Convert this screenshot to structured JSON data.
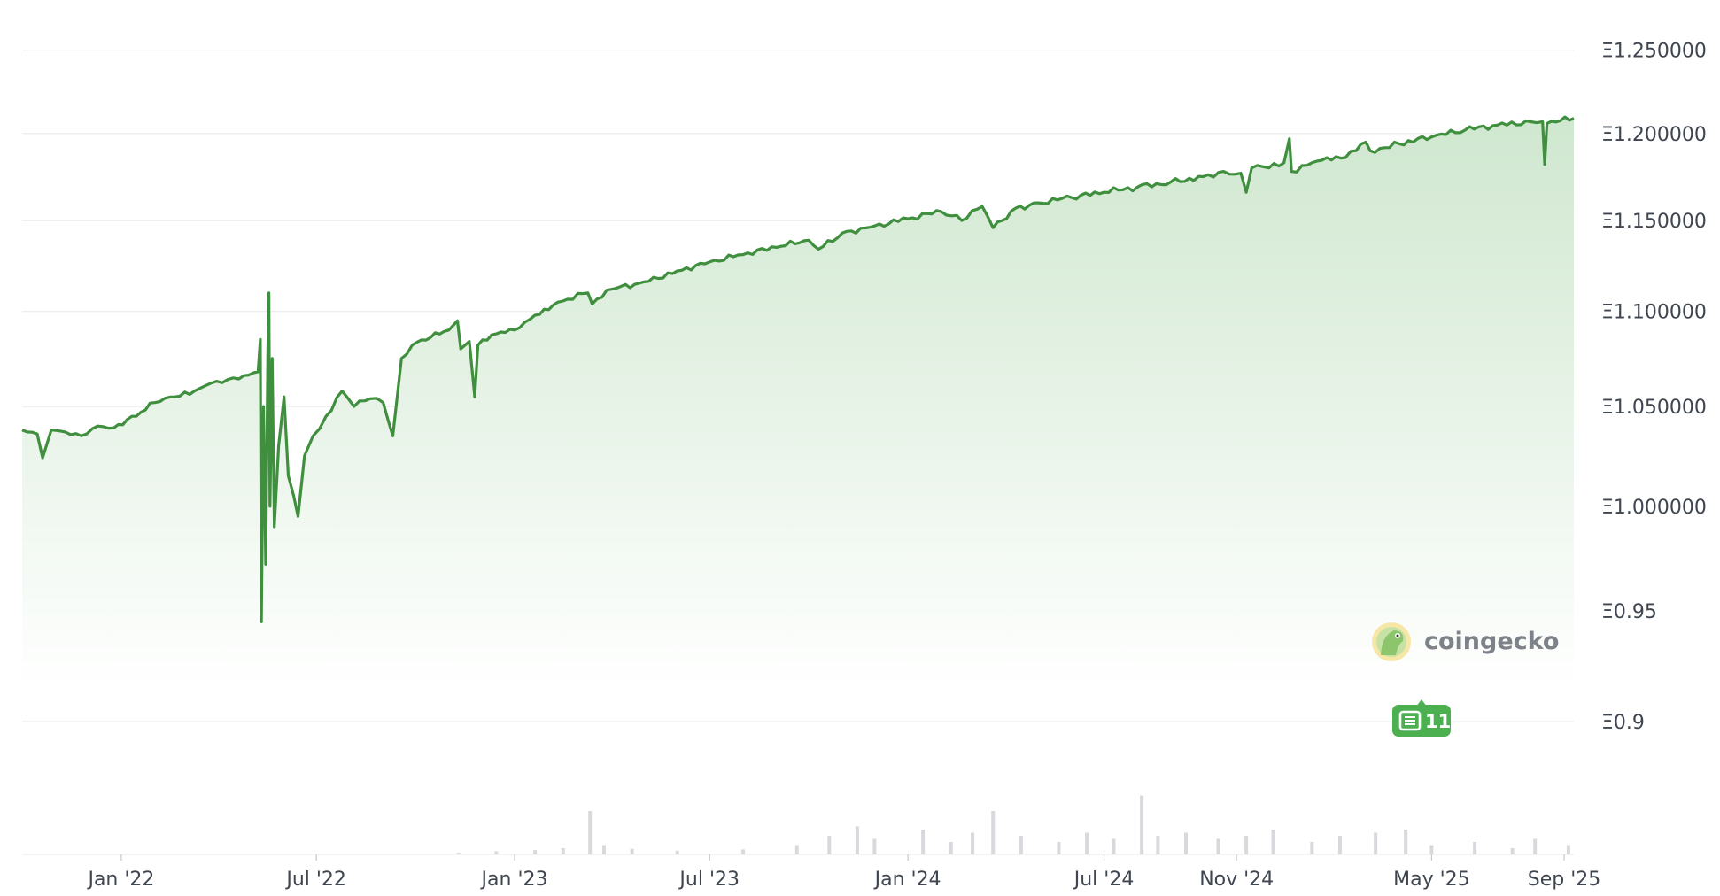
{
  "brand": {
    "name": "coingecko",
    "icon": "gecko-icon"
  },
  "news_badge": {
    "count": "11",
    "icon": "newspaper-icon",
    "color": "#4caf50"
  },
  "colors": {
    "line": "#3f8f3f",
    "area_top": "#cfe7cf",
    "volume": "#d9d9dd"
  },
  "chart_data": {
    "type": "area",
    "y_scale": "log",
    "grid": true,
    "ylim": [
      0.875,
      1.27
    ],
    "xlim": [
      "2021-10-01",
      "2025-09-10"
    ],
    "y_ticks": [
      {
        "value": 1.25,
        "label": "Ξ1.250000"
      },
      {
        "value": 1.2,
        "label": "Ξ1.200000"
      },
      {
        "value": 1.15,
        "label": "Ξ1.150000"
      },
      {
        "value": 1.1,
        "label": "Ξ1.100000"
      },
      {
        "value": 1.05,
        "label": "Ξ1.050000"
      },
      {
        "value": 1.0,
        "label": "Ξ1.000000"
      },
      {
        "value": 0.95,
        "label": "Ξ0.95"
      },
      {
        "value": 0.9,
        "label": "Ξ0.9"
      }
    ],
    "x_ticks": [
      {
        "date": "2022-01-01",
        "label": "Jan '22"
      },
      {
        "date": "2022-07-01",
        "label": "Jul '22"
      },
      {
        "date": "2023-01-01",
        "label": "Jan '23"
      },
      {
        "date": "2023-07-01",
        "label": "Jul '23"
      },
      {
        "date": "2024-01-01",
        "label": "Jan '24"
      },
      {
        "date": "2024-07-01",
        "label": "Jul '24"
      },
      {
        "date": "2024-11-01",
        "label": "Nov '24"
      },
      {
        "date": "2025-05-01",
        "label": "May '25"
      },
      {
        "date": "2025-09-01",
        "label": "Sep '25"
      }
    ],
    "series": [
      {
        "points": [
          [
            "2021-10-01",
            1.038
          ],
          [
            "2021-10-15",
            1.036
          ],
          [
            "2021-10-20",
            1.024
          ],
          [
            "2021-10-28",
            1.038
          ],
          [
            "2021-11-10",
            1.037
          ],
          [
            "2021-11-25",
            1.035
          ],
          [
            "2021-12-10",
            1.04
          ],
          [
            "2021-12-25",
            1.039
          ],
          [
            "2022-01-15",
            1.045
          ],
          [
            "2022-02-01",
            1.052
          ],
          [
            "2022-02-20",
            1.055
          ],
          [
            "2022-03-10",
            1.058
          ],
          [
            "2022-03-25",
            1.062
          ],
          [
            "2022-04-10",
            1.064
          ],
          [
            "2022-04-25",
            1.066
          ],
          [
            "2022-05-08",
            1.068
          ],
          [
            "2022-05-10",
            1.085
          ],
          [
            "2022-05-11",
            0.945
          ],
          [
            "2022-05-13",
            1.05
          ],
          [
            "2022-05-15",
            0.972
          ],
          [
            "2022-05-17",
            1.08
          ],
          [
            "2022-05-18",
            1.11
          ],
          [
            "2022-05-19",
            1.0
          ],
          [
            "2022-05-21",
            1.075
          ],
          [
            "2022-05-23",
            0.99
          ],
          [
            "2022-05-27",
            1.03
          ],
          [
            "2022-06-01",
            1.055
          ],
          [
            "2022-06-05",
            1.015
          ],
          [
            "2022-06-10",
            1.005
          ],
          [
            "2022-06-14",
            0.995
          ],
          [
            "2022-06-20",
            1.025
          ],
          [
            "2022-06-28",
            1.035
          ],
          [
            "2022-07-10",
            1.045
          ],
          [
            "2022-07-25",
            1.058
          ],
          [
            "2022-08-05",
            1.05
          ],
          [
            "2022-08-20",
            1.054
          ],
          [
            "2022-09-01",
            1.052
          ],
          [
            "2022-09-10",
            1.035
          ],
          [
            "2022-09-18",
            1.075
          ],
          [
            "2022-09-28",
            1.082
          ],
          [
            "2022-10-15",
            1.086
          ],
          [
            "2022-11-01",
            1.09
          ],
          [
            "2022-11-09",
            1.095
          ],
          [
            "2022-11-12",
            1.08
          ],
          [
            "2022-11-20",
            1.084
          ],
          [
            "2022-11-25",
            1.055
          ],
          [
            "2022-11-28",
            1.082
          ],
          [
            "2022-12-15",
            1.088
          ],
          [
            "2023-01-01",
            1.09
          ],
          [
            "2023-01-20",
            1.098
          ],
          [
            "2023-02-10",
            1.105
          ],
          [
            "2023-03-10",
            1.11
          ],
          [
            "2023-03-14",
            1.104
          ],
          [
            "2023-04-01",
            1.112
          ],
          [
            "2023-05-01",
            1.116
          ],
          [
            "2023-06-01",
            1.122
          ],
          [
            "2023-07-01",
            1.127
          ],
          [
            "2023-08-01",
            1.131
          ],
          [
            "2023-09-01",
            1.135
          ],
          [
            "2023-10-01",
            1.139
          ],
          [
            "2023-10-10",
            1.134
          ],
          [
            "2023-11-01",
            1.143
          ],
          [
            "2023-12-01",
            1.147
          ],
          [
            "2024-01-01",
            1.151
          ],
          [
            "2024-02-01",
            1.155
          ],
          [
            "2024-02-20",
            1.15
          ],
          [
            "2024-03-10",
            1.158
          ],
          [
            "2024-03-20",
            1.146
          ],
          [
            "2024-04-10",
            1.157
          ],
          [
            "2024-05-01",
            1.16
          ],
          [
            "2024-06-01",
            1.163
          ],
          [
            "2024-07-01",
            1.166
          ],
          [
            "2024-08-01",
            1.169
          ],
          [
            "2024-09-01",
            1.172
          ],
          [
            "2024-10-01",
            1.175
          ],
          [
            "2024-10-20",
            1.178
          ],
          [
            "2024-11-05",
            1.177
          ],
          [
            "2024-11-10",
            1.166
          ],
          [
            "2024-11-15",
            1.18
          ],
          [
            "2024-12-01",
            1.18
          ],
          [
            "2024-12-15",
            1.183
          ],
          [
            "2024-12-20",
            1.197
          ],
          [
            "2024-12-22",
            1.178
          ],
          [
            "2025-01-15",
            1.184
          ],
          [
            "2025-02-10",
            1.186
          ],
          [
            "2025-02-20",
            1.19
          ],
          [
            "2025-03-01",
            1.195
          ],
          [
            "2025-03-05",
            1.19
          ],
          [
            "2025-04-01",
            1.194
          ],
          [
            "2025-05-01",
            1.198
          ],
          [
            "2025-06-01",
            1.202
          ],
          [
            "2025-07-01",
            1.205
          ],
          [
            "2025-08-01",
            1.207
          ],
          [
            "2025-08-12",
            1.207
          ],
          [
            "2025-08-14",
            1.182
          ],
          [
            "2025-08-16",
            1.206
          ],
          [
            "2025-09-10",
            1.209
          ]
        ]
      }
    ],
    "volume": [
      [
        "2022-11-10",
        0.02
      ],
      [
        "2022-12-15",
        0.05
      ],
      [
        "2023-01-20",
        0.07
      ],
      [
        "2023-02-15",
        0.1
      ],
      [
        "2023-03-12",
        0.7
      ],
      [
        "2023-03-25",
        0.15
      ],
      [
        "2023-04-20",
        0.09
      ],
      [
        "2023-06-01",
        0.06
      ],
      [
        "2023-08-01",
        0.08
      ],
      [
        "2023-09-20",
        0.15
      ],
      [
        "2023-10-20",
        0.3
      ],
      [
        "2023-11-15",
        0.45
      ],
      [
        "2023-12-01",
        0.25
      ],
      [
        "2024-01-15",
        0.4
      ],
      [
        "2024-02-10",
        0.2
      ],
      [
        "2024-03-01",
        0.35
      ],
      [
        "2024-03-20",
        0.7
      ],
      [
        "2024-04-15",
        0.3
      ],
      [
        "2024-05-20",
        0.2
      ],
      [
        "2024-06-15",
        0.35
      ],
      [
        "2024-07-10",
        0.25
      ],
      [
        "2024-08-05",
        0.95
      ],
      [
        "2024-08-20",
        0.3
      ],
      [
        "2024-09-15",
        0.35
      ],
      [
        "2024-10-15",
        0.25
      ],
      [
        "2024-11-10",
        0.3
      ],
      [
        "2024-12-05",
        0.4
      ],
      [
        "2025-01-10",
        0.2
      ],
      [
        "2025-02-05",
        0.3
      ],
      [
        "2025-03-10",
        0.35
      ],
      [
        "2025-04-07",
        0.4
      ],
      [
        "2025-05-01",
        0.15
      ],
      [
        "2025-06-10",
        0.2
      ],
      [
        "2025-07-15",
        0.1
      ],
      [
        "2025-08-05",
        0.25
      ],
      [
        "2025-09-05",
        0.15
      ]
    ]
  }
}
